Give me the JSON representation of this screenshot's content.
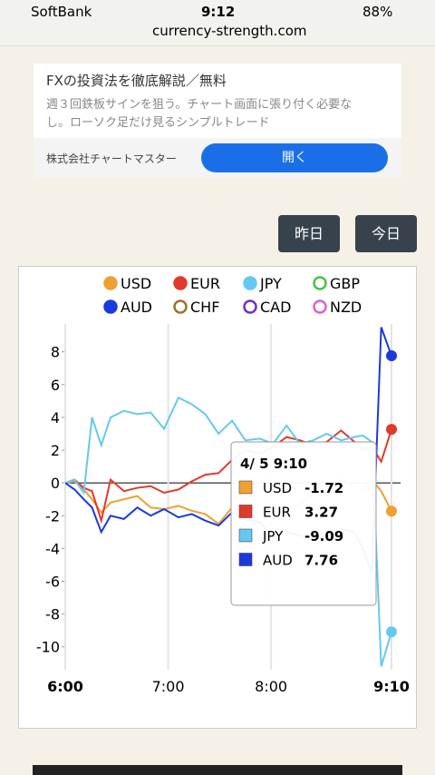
{
  "status_bar": {
    "carrier": "SoftBank",
    "time": "9:12",
    "battery": "88%",
    "url": "currency-strength.com"
  },
  "ad": {
    "title": "FXの投資法を徹底解説／無料",
    "description": "週３回鉄板サインを狙う。チャート画面に張り付く必要なし。ローソク足だけ見るシンプルトレード",
    "advertiser": "株式会社チャートマスター",
    "button": "開く"
  },
  "buttons": [
    "昨日",
    "今日"
  ],
  "chart_data": {
    "type": "line",
    "x": [
      6.0,
      6.09,
      6.18,
      6.26,
      6.35,
      6.44,
      6.57,
      6.7,
      6.83,
      6.96,
      7.1,
      7.23,
      7.36,
      7.49,
      7.62,
      7.75,
      7.89,
      8.02,
      8.15,
      8.28,
      8.41,
      8.54,
      8.68,
      8.81,
      8.89,
      8.98,
      9.07,
      9.17
    ],
    "xlim": [
      6.0,
      9.17
    ],
    "xticks": [
      {
        "value": 6,
        "label": "6:00"
      },
      {
        "value": 7,
        "label": "7:00"
      },
      {
        "value": 8,
        "label": "8:00"
      },
      {
        "value": 9.17,
        "label": "9:10"
      }
    ],
    "ylim": [
      -11.4,
      9.7
    ],
    "yticks": [
      -10,
      -8,
      -6,
      -4,
      -2,
      0,
      2,
      4,
      6,
      8
    ],
    "series": [
      {
        "name": "USD",
        "color": "#f0a030",
        "values": [
          0,
          0.1,
          -0.4,
          -1.0,
          -1.8,
          -1.2,
          -1.0,
          -0.8,
          -1.5,
          -1.6,
          -1.4,
          -1.7,
          -1.9,
          -2.5,
          -1.5,
          -1.3,
          -1.9,
          -1.8,
          -1.6,
          -1.3,
          -0.6,
          -0.3,
          0.2,
          -0.2,
          -0.4,
          0.2,
          -0.5,
          -1.72
        ]
      },
      {
        "name": "EUR",
        "color": "#e03a2a",
        "values": [
          0,
          0.2,
          -0.3,
          -0.5,
          -2.3,
          0.2,
          -0.5,
          -0.3,
          -0.2,
          -0.6,
          -0.4,
          0.1,
          0.5,
          0.6,
          1.4,
          2.0,
          1.8,
          2.2,
          2.8,
          2.6,
          2.3,
          2.5,
          3.2,
          2.5,
          2.0,
          2.2,
          1.3,
          3.27
        ]
      },
      {
        "name": "JPY",
        "color": "#66c8f0",
        "values": [
          0,
          0.2,
          -0.6,
          4.0,
          2.3,
          4.0,
          4.4,
          4.2,
          4.3,
          3.3,
          5.2,
          4.8,
          4.2,
          3.0,
          3.8,
          2.6,
          2.7,
          2.4,
          3.5,
          2.4,
          2.6,
          3.0,
          2.6,
          2.8,
          2.9,
          2.5,
          -11.2,
          -9.09
        ]
      },
      {
        "name": "GBP",
        "color": "#4cc04c",
        "hidden": true
      },
      {
        "name": "AUD",
        "color": "#1a3ae0",
        "values": [
          0,
          -0.4,
          -1.0,
          -1.5,
          -3.0,
          -2.0,
          -2.2,
          -1.5,
          -2.0,
          -1.6,
          -2.1,
          -1.9,
          -2.3,
          -2.6,
          -1.8,
          -2.2,
          -2.4,
          -3.3,
          -3.0,
          -3.2,
          -3.4,
          -3.3,
          -2.8,
          -3.0,
          -4.0,
          -5.5,
          9.5,
          7.76
        ]
      },
      {
        "name": "CHF",
        "color": "#a07030",
        "hidden": true
      },
      {
        "name": "CAD",
        "color": "#7030d0",
        "hidden": true
      },
      {
        "name": "NZD",
        "color": "#e060c0",
        "hidden": true
      }
    ],
    "tooltip_title": "4/ 5 9:10"
  }
}
